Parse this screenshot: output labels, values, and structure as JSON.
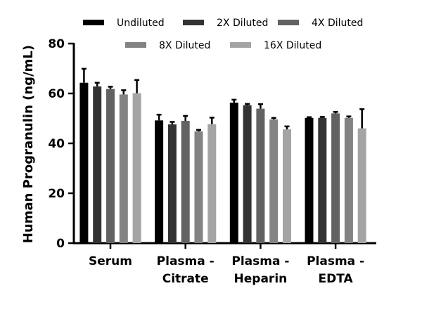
{
  "chart_data": {
    "type": "bar",
    "title": "",
    "xlabel": "",
    "ylabel": "Human Progranulin (ng/mL)",
    "ylim": [
      0,
      80
    ],
    "yticks": [
      0,
      20,
      40,
      60,
      80
    ],
    "grid": false,
    "legend_placement": "top",
    "categories": [
      [
        "Serum"
      ],
      [
        "Plasma -",
        "Citrate"
      ],
      [
        "Plasma -",
        "Heparin"
      ],
      [
        "Plasma -",
        "EDTA"
      ]
    ],
    "series": [
      {
        "name": "Undiluted",
        "color": "#000000",
        "values": [
          64.3,
          49.2,
          56.3,
          50.2
        ],
        "error": [
          5.6,
          2.3,
          1.2,
          0.3
        ]
      },
      {
        "name": "2X Diluted",
        "color": "#333333",
        "values": [
          62.8,
          47.6,
          55.3,
          50.2
        ],
        "error": [
          1.5,
          1.0,
          0.5,
          0.4
        ]
      },
      {
        "name": "4X Diluted",
        "color": "#626262",
        "values": [
          61.8,
          49.0,
          53.9,
          52.0
        ],
        "error": [
          0.9,
          2.0,
          1.8,
          0.6
        ]
      },
      {
        "name": "8X Diluted",
        "color": "#838383",
        "values": [
          59.6,
          44.8,
          49.6,
          50.2
        ],
        "error": [
          1.7,
          0.6,
          0.6,
          0.6
        ]
      },
      {
        "name": "16X Diluted",
        "color": "#a4a4a6",
        "values": [
          60.1,
          47.7,
          45.6,
          46.0
        ],
        "error": [
          5.3,
          2.6,
          1.2,
          7.7
        ]
      }
    ]
  }
}
